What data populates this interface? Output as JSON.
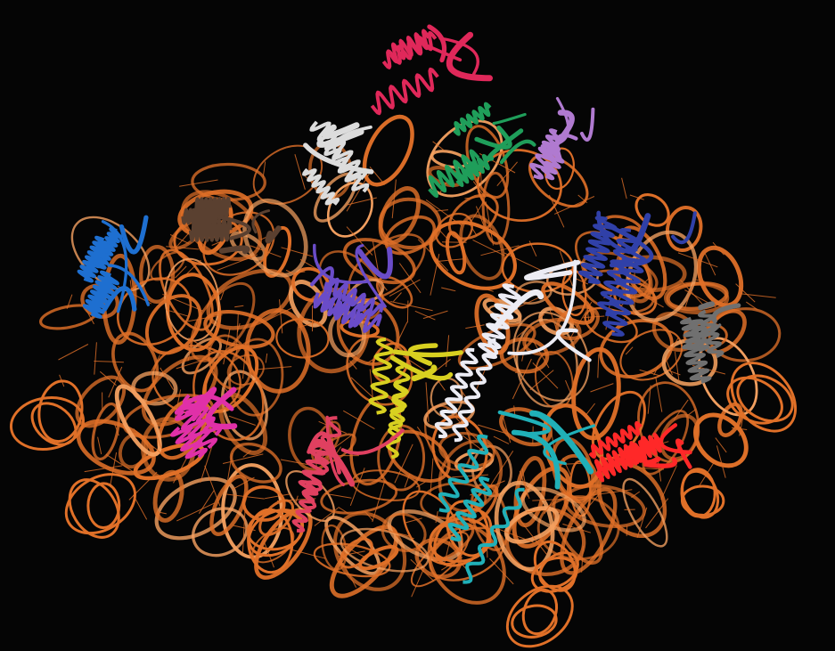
{
  "image": {
    "kind": "molecular-structure-render",
    "background_color": "#050505",
    "rna_color": "#e07028",
    "rna_highlight_color": "#f4a060",
    "protein_chain_colors": [
      "#e0285a",
      "#1f9e5a",
      "#b07ad0",
      "#dcdcdc",
      "#1e6fd0",
      "#5a4030",
      "#6a4cc8",
      "#3040a8",
      "#ececf4",
      "#d8d020",
      "#e030a8",
      "#e04060",
      "#20b0b8",
      "#ff2828",
      "#707070"
    ]
  }
}
